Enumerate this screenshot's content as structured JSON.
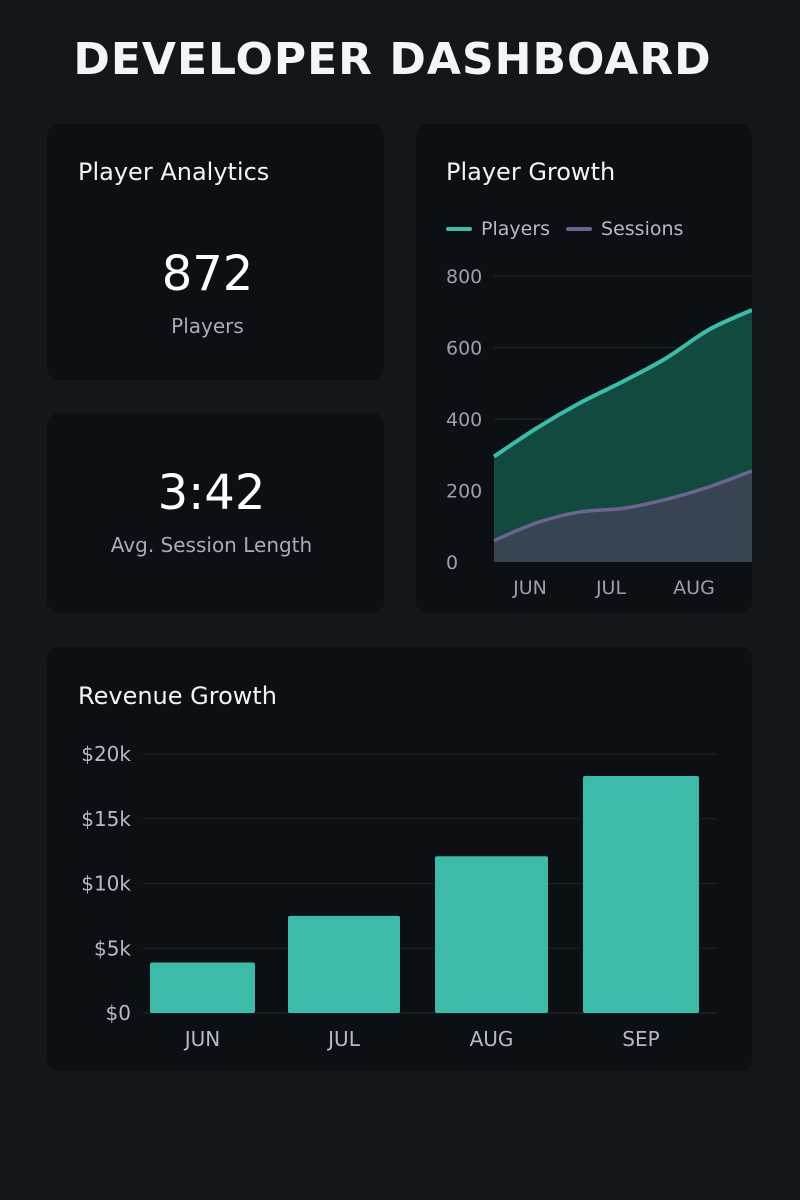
{
  "dashboard": {
    "title": "DEVELOPER DASHBOARD"
  },
  "player_analytics": {
    "title": "Player Analytics",
    "players_value": "872",
    "players_label": "Players"
  },
  "session": {
    "value": "3:42",
    "label": "Avg. Session Length"
  },
  "player_growth": {
    "title": "Player Growth",
    "legend": [
      "Players",
      "Sessions"
    ]
  },
  "revenue_growth": {
    "title": "Revenue Growth"
  },
  "colors": {
    "accent": "#3dbba8",
    "sessions": "#6a6590",
    "background": "#13161b",
    "card": "#0c0f14"
  },
  "chart_data": [
    {
      "type": "area",
      "x_tick_labels": [
        "JUN",
        "JUL",
        "AUG"
      ],
      "y_tick_labels": [
        "800",
        "600",
        "400",
        "200",
        "0"
      ],
      "ylim": [
        0,
        800
      ],
      "grid": true,
      "legend_position": "top-left",
      "series": [
        {
          "name": "Players",
          "x": [
            0.0,
            0.5,
            1.0,
            1.5,
            2.0,
            2.5,
            3.0
          ],
          "values": [
            295,
            375,
            445,
            505,
            570,
            650,
            705
          ],
          "color": "#3dbba8"
        },
        {
          "name": "Sessions",
          "x": [
            0.0,
            0.5,
            1.0,
            1.5,
            2.0,
            2.5,
            3.0
          ],
          "values": [
            60,
            110,
            140,
            150,
            175,
            210,
            255
          ],
          "color": "#6a6590"
        }
      ]
    },
    {
      "type": "bar",
      "categories": [
        "JUN",
        "JUL",
        "AUG",
        "SEP"
      ],
      "values": [
        3900,
        7500,
        12100,
        18300
      ],
      "y_tick_labels": [
        "$20k",
        "$15k",
        "$10k",
        "$5k",
        "$0"
      ],
      "ylim": [
        0,
        20000
      ],
      "grid": true
    }
  ]
}
